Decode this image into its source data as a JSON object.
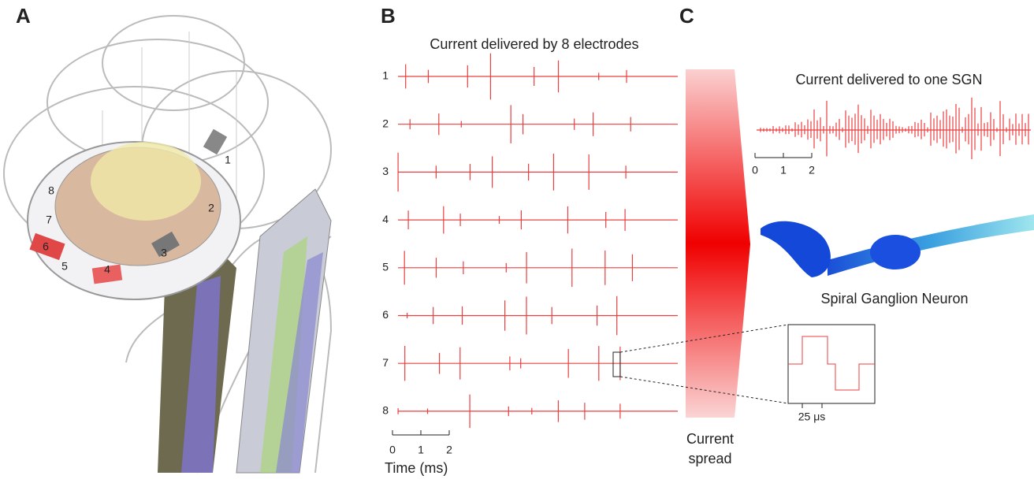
{
  "panels": [
    {
      "label": "A",
      "electrode_labels": [
        1,
        2,
        3,
        4,
        5,
        6,
        7,
        8
      ]
    },
    {
      "label": "B",
      "title": "Current delivered by 8 electrodes",
      "channels": [
        1,
        2,
        3,
        4,
        5,
        6,
        7,
        8
      ],
      "scale_ticks": [
        0,
        1,
        2
      ],
      "x_label": "Time (ms)"
    },
    {
      "label": "C",
      "title": "Current delivered to one SGN",
      "scale_ticks": [
        0,
        1,
        2
      ],
      "neuron_label": "Spiral Ganglion Neuron",
      "inset_scale": "25 μs"
    }
  ],
  "current_spread": [
    "Current",
    "spread"
  ]
}
